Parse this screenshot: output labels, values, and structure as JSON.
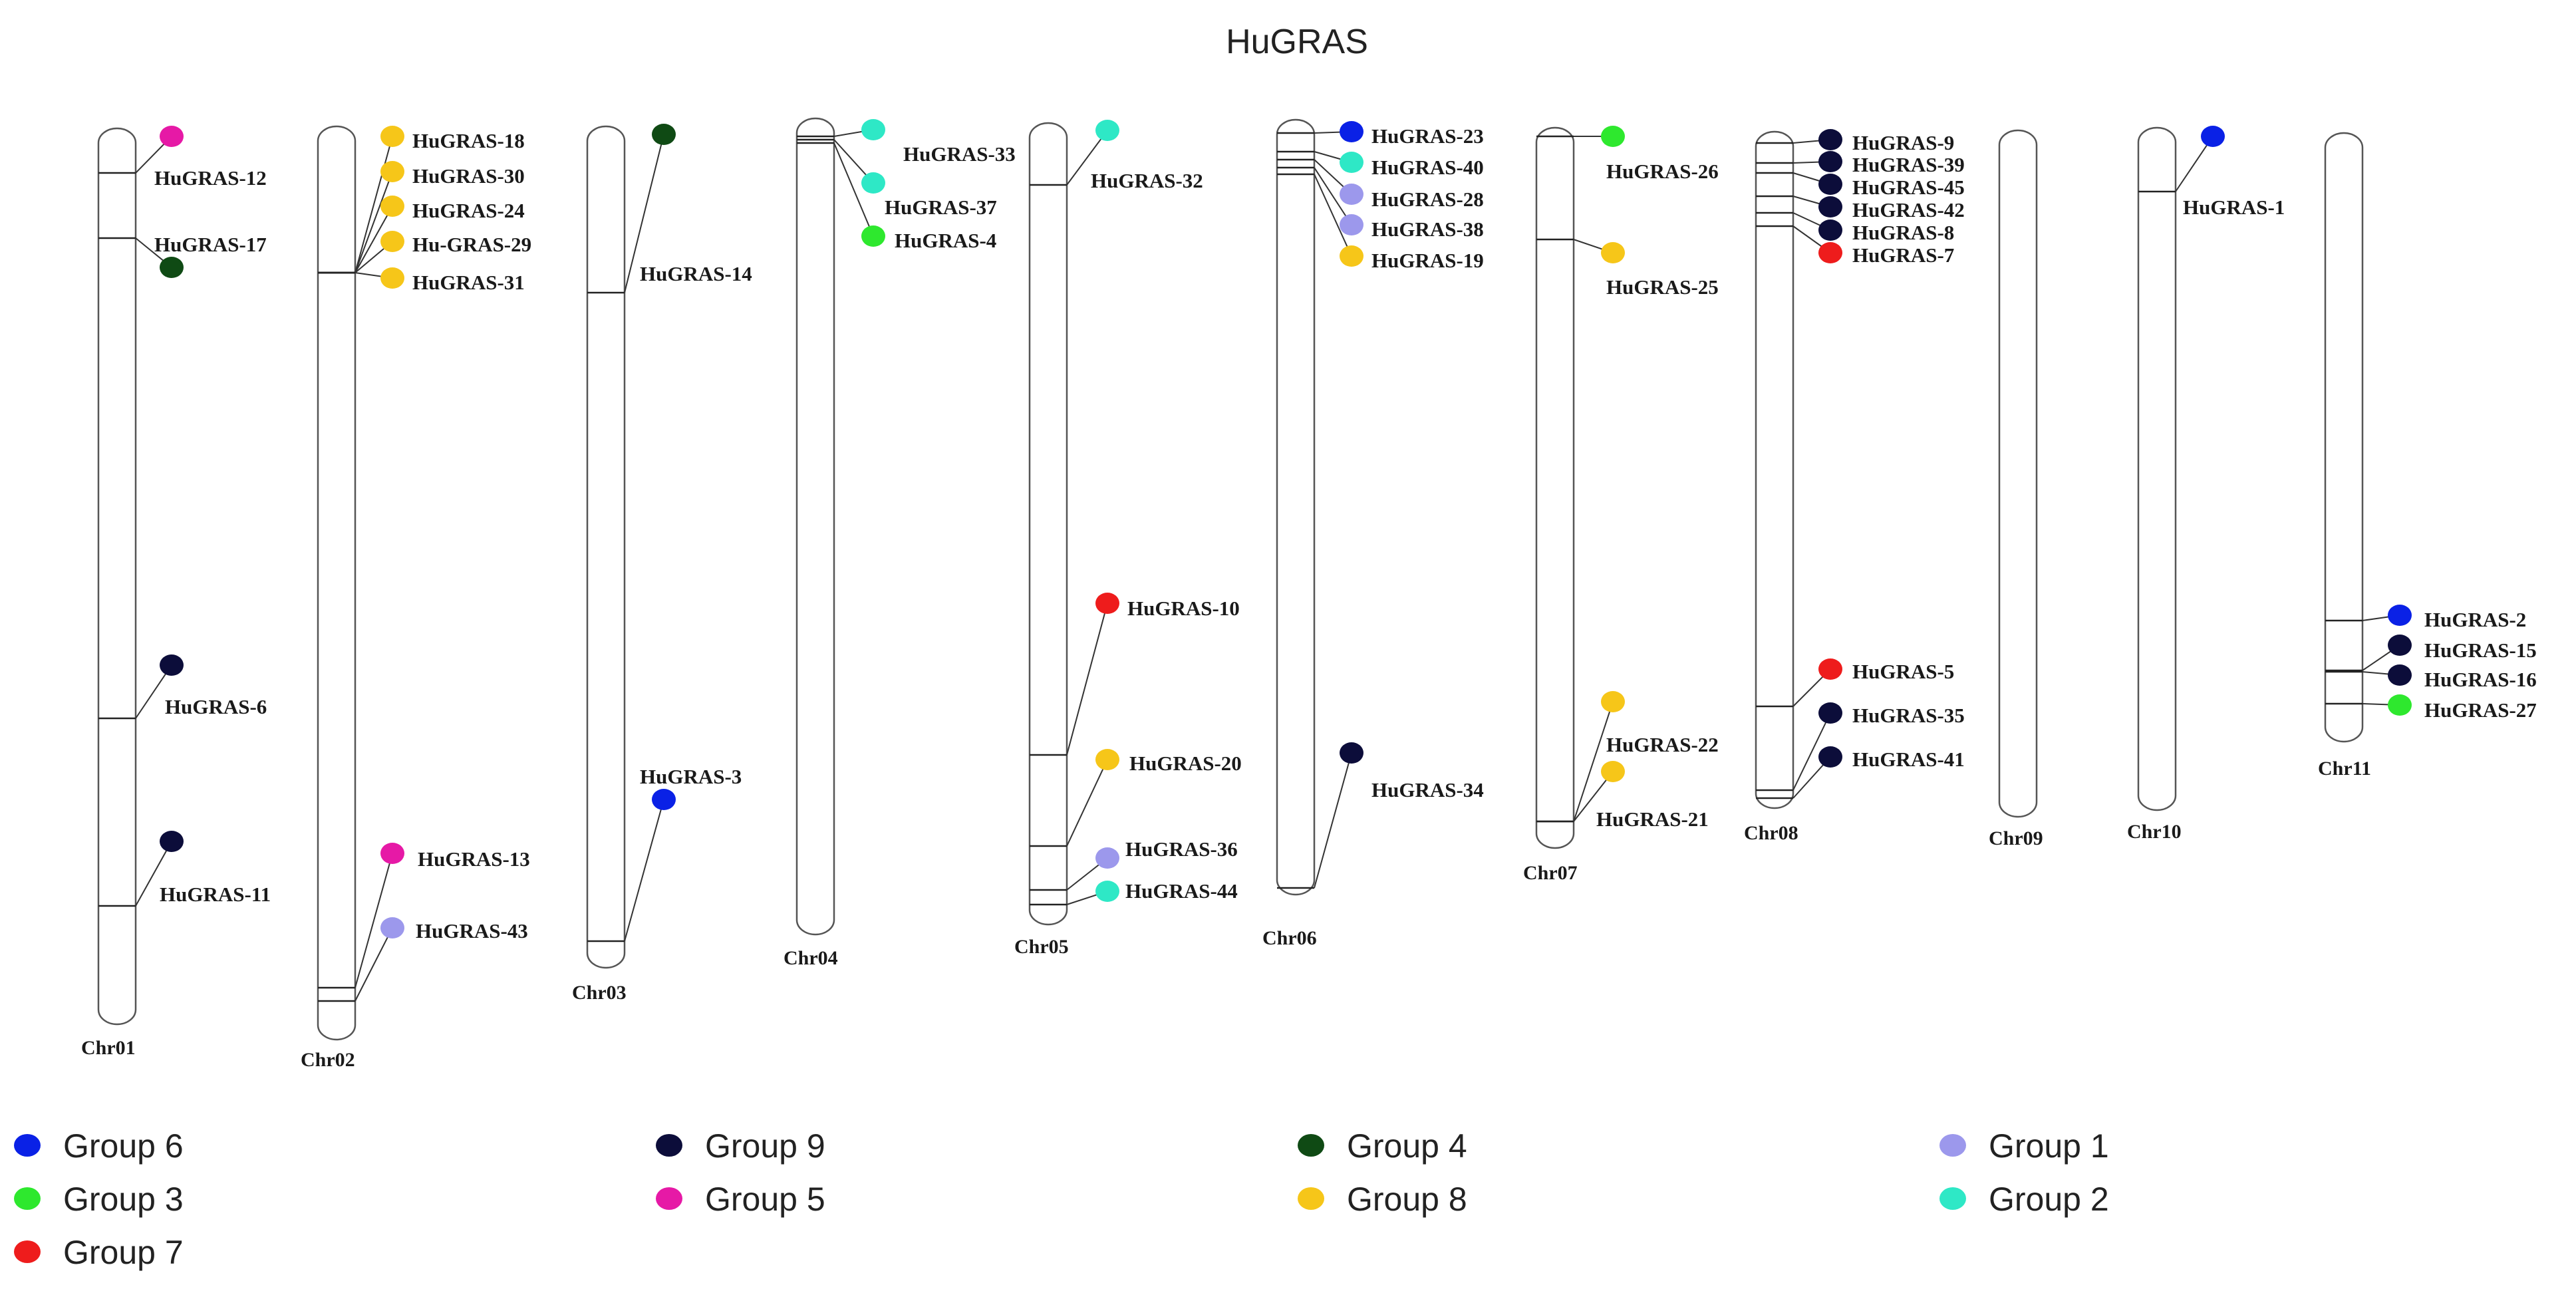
{
  "title": "HuGRAS",
  "groups": {
    "g6": {
      "label": "Group 6",
      "color": "#0a21e6"
    },
    "g3": {
      "label": "Group 3",
      "color": "#2ee82e"
    },
    "g7": {
      "label": "Group 7",
      "color": "#ee1c1c"
    },
    "g9": {
      "label": "Group 9",
      "color": "#0c0d3a"
    },
    "g5": {
      "label": "Group 5",
      "color": "#e619a6"
    },
    "g4": {
      "label": "Group 4",
      "color": "#0f4a14"
    },
    "g8": {
      "label": "Group 8",
      "color": "#f6c619"
    },
    "g1": {
      "label": "Group 1",
      "color": "#9c98ec"
    },
    "g2": {
      "label": "Group 2",
      "color": "#2ee8c6"
    }
  },
  "legend_order": [
    [
      "g6",
      "g3",
      "g7"
    ],
    [
      "g9",
      "g5"
    ],
    [
      "g4",
      "g8"
    ],
    [
      "g1",
      "g2"
    ]
  ],
  "chromosomes": [
    {
      "name": "Chr01"
    },
    {
      "name": "Chr02"
    },
    {
      "name": "Chr03"
    },
    {
      "name": "Chr04"
    },
    {
      "name": "Chr05"
    },
    {
      "name": "Chr06"
    },
    {
      "name": "Chr07"
    },
    {
      "name": "Chr08"
    },
    {
      "name": "Chr09"
    },
    {
      "name": "Chr10"
    },
    {
      "name": "Chr11"
    }
  ],
  "genes": [
    {
      "label": "HuGRAS-12",
      "chr": "Chr01",
      "group": "g5"
    },
    {
      "label": "HuGRAS-17",
      "chr": "Chr01",
      "group": "g4"
    },
    {
      "label": "HuGRAS-6",
      "chr": "Chr01",
      "group": "g9"
    },
    {
      "label": "HuGRAS-11",
      "chr": "Chr01",
      "group": "g9"
    },
    {
      "label": "HuGRAS-18",
      "chr": "Chr02",
      "group": "g8"
    },
    {
      "label": "HuGRAS-30",
      "chr": "Chr02",
      "group": "g8"
    },
    {
      "label": "HuGRAS-24",
      "chr": "Chr02",
      "group": "g8"
    },
    {
      "label": "Hu-GRAS-29",
      "chr": "Chr02",
      "group": "g8"
    },
    {
      "label": "HuGRAS-31",
      "chr": "Chr02",
      "group": "g8"
    },
    {
      "label": "HuGRAS-13",
      "chr": "Chr02",
      "group": "g5"
    },
    {
      "label": "HuGRAS-43",
      "chr": "Chr02",
      "group": "g1"
    },
    {
      "label": "HuGRAS-14",
      "chr": "Chr03",
      "group": "g4"
    },
    {
      "label": "HuGRAS-3",
      "chr": "Chr03",
      "group": "g6"
    },
    {
      "label": "HuGRAS-33",
      "chr": "Chr04",
      "group": "g2"
    },
    {
      "label": "HuGRAS-37",
      "chr": "Chr04",
      "group": "g2"
    },
    {
      "label": "HuGRAS-4",
      "chr": "Chr04",
      "group": "g3"
    },
    {
      "label": "HuGRAS-32",
      "chr": "Chr05",
      "group": "g2"
    },
    {
      "label": "HuGRAS-10",
      "chr": "Chr05",
      "group": "g7"
    },
    {
      "label": "HuGRAS-20",
      "chr": "Chr05",
      "group": "g8"
    },
    {
      "label": "HuGRAS-36",
      "chr": "Chr05",
      "group": "g1"
    },
    {
      "label": "HuGRAS-44",
      "chr": "Chr05",
      "group": "g2"
    },
    {
      "label": "HuGRAS-23",
      "chr": "Chr06",
      "group": "g6"
    },
    {
      "label": "HuGRAS-40",
      "chr": "Chr06",
      "group": "g2"
    },
    {
      "label": "HuGRAS-28",
      "chr": "Chr06",
      "group": "g1"
    },
    {
      "label": "HuGRAS-38",
      "chr": "Chr06",
      "group": "g1"
    },
    {
      "label": "HuGRAS-19",
      "chr": "Chr06",
      "group": "g8"
    },
    {
      "label": "HuGRAS-34",
      "chr": "Chr06",
      "group": "g9"
    },
    {
      "label": "HuGRAS-26",
      "chr": "Chr07",
      "group": "g3"
    },
    {
      "label": "HuGRAS-25",
      "chr": "Chr07",
      "group": "g8"
    },
    {
      "label": "HuGRAS-22",
      "chr": "Chr07",
      "group": "g8"
    },
    {
      "label": "HuGRAS-21",
      "chr": "Chr07",
      "group": "g8"
    },
    {
      "label": "HuGRAS-9",
      "chr": "Chr08",
      "group": "g9"
    },
    {
      "label": "HuGRAS-39",
      "chr": "Chr08",
      "group": "g9"
    },
    {
      "label": "HuGRAS-45",
      "chr": "Chr08",
      "group": "g9"
    },
    {
      "label": "HuGRAS-42",
      "chr": "Chr08",
      "group": "g9"
    },
    {
      "label": "HuGRAS-8",
      "chr": "Chr08",
      "group": "g9"
    },
    {
      "label": "HuGRAS-7",
      "chr": "Chr08",
      "group": "g7"
    },
    {
      "label": "HuGRAS-5",
      "chr": "Chr08",
      "group": "g7"
    },
    {
      "label": "HuGRAS-35",
      "chr": "Chr08",
      "group": "g9"
    },
    {
      "label": "HuGRAS-41",
      "chr": "Chr08",
      "group": "g9"
    },
    {
      "label": "HuGRAS-1",
      "chr": "Chr10",
      "group": "g6"
    },
    {
      "label": "HuGRAS-2",
      "chr": "Chr11",
      "group": "g6"
    },
    {
      "label": "HuGRAS-15",
      "chr": "Chr11",
      "group": "g9"
    },
    {
      "label": "HuGRAS-16",
      "chr": "Chr11",
      "group": "g9"
    },
    {
      "label": "HuGRAS-27",
      "chr": "Chr11",
      "group": "g3"
    }
  ]
}
